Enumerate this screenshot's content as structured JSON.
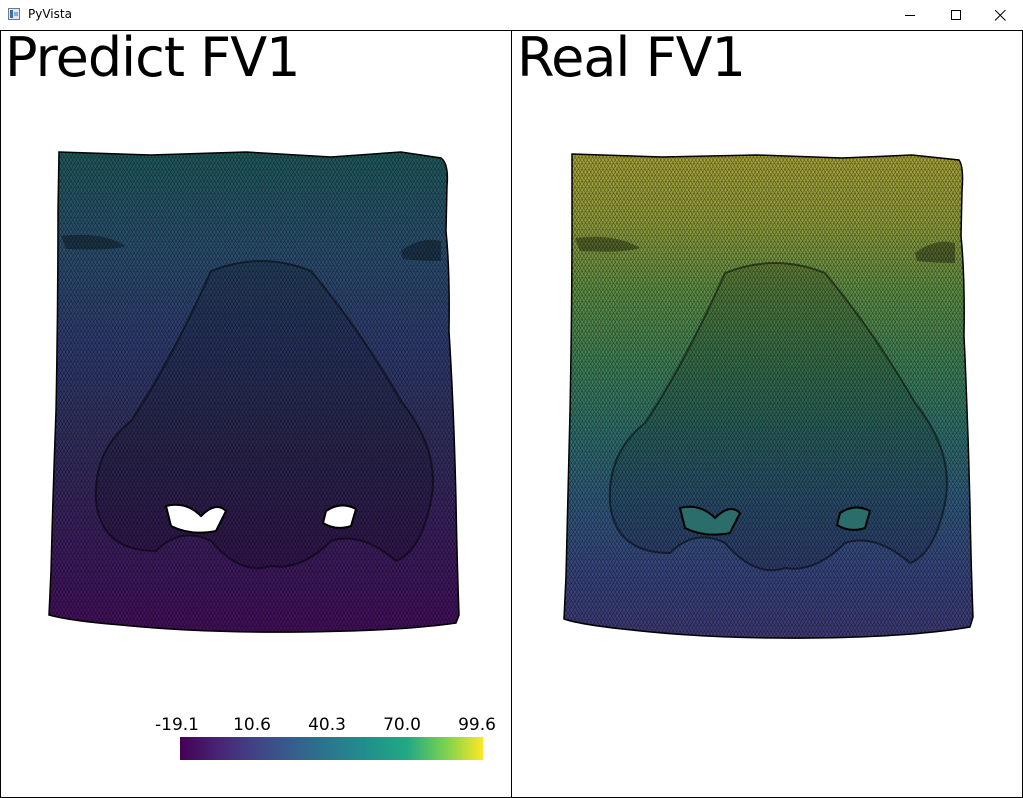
{
  "window": {
    "title": "PyVista",
    "icon": "pyvista-app-icon",
    "controls": [
      "minimize-icon",
      "maximize-icon",
      "close-icon"
    ]
  },
  "viewports": [
    {
      "title": "Predict FV1",
      "mesh_gradient": [
        "#1f5a5c",
        "#2a4f6f",
        "#2f3c70",
        "#32305f",
        "#3a1f5e",
        "#440f5c"
      ],
      "scalar_bar": {
        "labels": [
          "-19.1",
          "10.6",
          "40.3",
          "70.0",
          "99.6"
        ],
        "range": [
          -19.1,
          99.6
        ],
        "colormap": "viridis"
      }
    },
    {
      "title": "Real FV1",
      "mesh_gradient": [
        "#a8a238",
        "#8f9c3a",
        "#5d8d45",
        "#3f8055",
        "#2f6f6a",
        "#2f5a7c",
        "#37467f",
        "#3e3a75"
      ]
    }
  ]
}
